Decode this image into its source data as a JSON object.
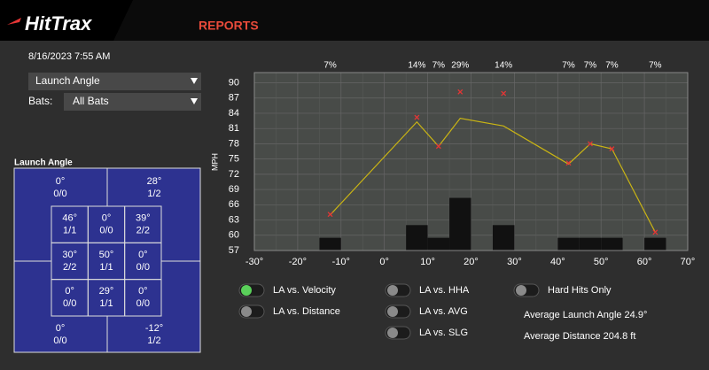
{
  "header": {
    "logo": "HitTrax",
    "nav": "REPORTS",
    "date": "8/16/2023 7:55 AM"
  },
  "filters": {
    "metric": "Launch Angle",
    "bats_label": "Bats:",
    "bats": "All Bats"
  },
  "zone": {
    "title": "Launch Angle",
    "corners": [
      [
        "0°",
        "0/0"
      ],
      [
        "28°",
        "1/2"
      ],
      [
        "0°",
        "0/0"
      ],
      [
        "-12°",
        "1/2"
      ]
    ],
    "grid": [
      [
        [
          "46°",
          "1/1"
        ],
        [
          "0°",
          "0/0"
        ],
        [
          "39°",
          "2/2"
        ]
      ],
      [
        [
          "30°",
          "2/2"
        ],
        [
          "50°",
          "1/1"
        ],
        [
          "0°",
          "0/0"
        ]
      ],
      [
        [
          "0°",
          "0/0"
        ],
        [
          "29°",
          "1/1"
        ],
        [
          "0°",
          "0/0"
        ]
      ]
    ]
  },
  "chart_data": {
    "type": "scatter",
    "ylabel": "MPH",
    "x": [
      -12.5,
      7.5,
      12.5,
      17.5,
      27.5,
      42.5,
      47.5,
      52.5,
      62.5
    ],
    "series": [
      {
        "type": "bar",
        "color": "#111111",
        "values": [
          7,
          14,
          7,
          29,
          14,
          7,
          7,
          7,
          7
        ],
        "value_labels": [
          "7%",
          "14%",
          "7%",
          "29%",
          "14%",
          "7%",
          "7%",
          "7%",
          "7%"
        ]
      },
      {
        "type": "line",
        "color": "#c9b414",
        "values": [
          64,
          82.3,
          77.5,
          83,
          81.5,
          74,
          78,
          77,
          60.6
        ]
      },
      {
        "type": "scatter",
        "color": "#e53535",
        "values": [
          64.1,
          83.2,
          77.5,
          88.2,
          87.9,
          74.2,
          78,
          77,
          60.6
        ]
      }
    ],
    "xlim": [
      -30,
      70
    ],
    "xticks": [
      {
        "value": -30,
        "label": "-30°"
      },
      {
        "value": -20,
        "label": "-20°"
      },
      {
        "value": -10,
        "label": "-10°"
      },
      {
        "value": 0,
        "label": "0°"
      },
      {
        "value": 10,
        "label": "10°"
      },
      {
        "value": 20,
        "label": "20°"
      },
      {
        "value": 30,
        "label": "30°"
      },
      {
        "value": 40,
        "label": "40°"
      },
      {
        "value": 50,
        "label": "50°"
      },
      {
        "value": 60,
        "label": "60°"
      },
      {
        "value": 70,
        "label": "70°"
      }
    ],
    "ylim": [
      57,
      92
    ],
    "yticks": [
      57,
      60,
      63,
      66,
      69,
      72,
      75,
      78,
      81,
      84,
      87,
      90
    ],
    "grid": true
  },
  "toggles": [
    {
      "label": "LA vs. Velocity",
      "on": true
    },
    {
      "label": "LA vs. Distance",
      "on": false
    },
    {
      "label": "LA vs. HHA",
      "on": false
    },
    {
      "label": "LA vs. AVG",
      "on": false
    },
    {
      "label": "LA vs. SLG",
      "on": false
    },
    {
      "label": "Hard Hits Only",
      "on": false
    }
  ],
  "stats": [
    "Average Launch Angle 24.9°",
    "Average Distance 204.8 ft"
  ]
}
